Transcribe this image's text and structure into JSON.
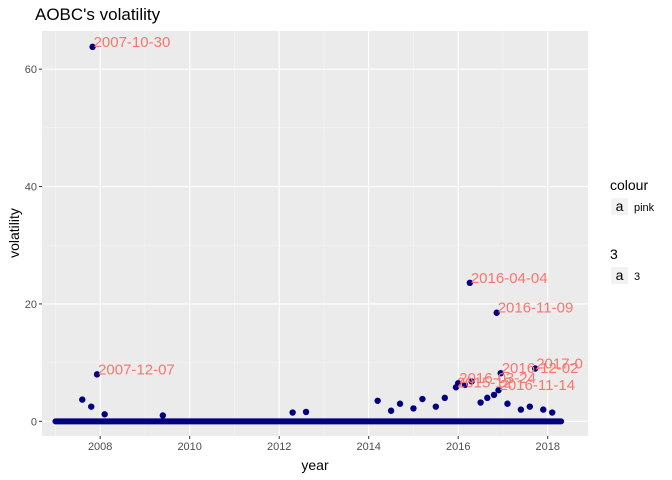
{
  "chart_data": {
    "type": "scatter",
    "title": "AOBC's volatility",
    "xlabel": "year",
    "ylabel": "volatility",
    "xlim": [
      2006.7,
      2018.9
    ],
    "ylim": [
      -2.5,
      66.5
    ],
    "x_ticks": [
      2008,
      2010,
      2012,
      2014,
      2016,
      2018
    ],
    "y_ticks": [
      0,
      20,
      40,
      60
    ],
    "grid": true,
    "point_color": "#000080",
    "label_color": "#f8766d",
    "panel_color": "#ebebeb",
    "legend_position": "right",
    "points": [
      {
        "x": 2007.83,
        "y": 63.8
      },
      {
        "x": 2007.93,
        "y": 8.0
      },
      {
        "x": 2016.26,
        "y": 23.6
      },
      {
        "x": 2016.86,
        "y": 18.5
      },
      {
        "x": 2007.6,
        "y": 3.7
      },
      {
        "x": 2007.8,
        "y": 2.5
      },
      {
        "x": 2008.1,
        "y": 1.2
      },
      {
        "x": 2009.4,
        "y": 1.0
      },
      {
        "x": 2012.3,
        "y": 1.5
      },
      {
        "x": 2012.6,
        "y": 1.6
      },
      {
        "x": 2014.2,
        "y": 3.5
      },
      {
        "x": 2014.5,
        "y": 1.8
      },
      {
        "x": 2014.7,
        "y": 3.0
      },
      {
        "x": 2015.0,
        "y": 2.2
      },
      {
        "x": 2015.2,
        "y": 3.8
      },
      {
        "x": 2015.5,
        "y": 2.5
      },
      {
        "x": 2015.7,
        "y": 4.0
      },
      {
        "x": 2015.95,
        "y": 5.8
      },
      {
        "x": 2016.0,
        "y": 6.5
      },
      {
        "x": 2016.15,
        "y": 6.2
      },
      {
        "x": 2016.3,
        "y": 6.8
      },
      {
        "x": 2016.5,
        "y": 3.2
      },
      {
        "x": 2016.65,
        "y": 4.0
      },
      {
        "x": 2016.8,
        "y": 4.5
      },
      {
        "x": 2016.9,
        "y": 5.3
      },
      {
        "x": 2016.95,
        "y": 8.2
      },
      {
        "x": 2017.1,
        "y": 3.0
      },
      {
        "x": 2017.4,
        "y": 2.0
      },
      {
        "x": 2017.6,
        "y": 2.5
      },
      {
        "x": 2017.72,
        "y": 9.0
      },
      {
        "x": 2017.9,
        "y": 2.0
      },
      {
        "x": 2018.1,
        "y": 1.5
      }
    ],
    "labels": [
      {
        "text": "2007-10-30",
        "x": 2007.83,
        "y": 63.8
      },
      {
        "text": "2007-12-07",
        "x": 2007.93,
        "y": 8.0
      },
      {
        "text": "2016-04-04",
        "x": 2016.26,
        "y": 23.6
      },
      {
        "text": "2016-11-09",
        "x": 2016.86,
        "y": 18.5
      },
      {
        "text": "2017-0",
        "x": 2017.72,
        "y": 9.0
      },
      {
        "text": "2016-12-02",
        "x": 2016.95,
        "y": 8.2
      },
      {
        "text": "2016-03-24",
        "x": 2016.0,
        "y": 6.5
      },
      {
        "text": "2015-12",
        "x": 2015.95,
        "y": 5.8
      },
      {
        "text": "2016-11-14",
        "x": 2016.9,
        "y": 5.3
      }
    ],
    "legend": [
      {
        "title": "colour",
        "key_glyph": "a",
        "label": "pink"
      },
      {
        "title": "3",
        "key_glyph": "a",
        "label": "3"
      }
    ]
  }
}
